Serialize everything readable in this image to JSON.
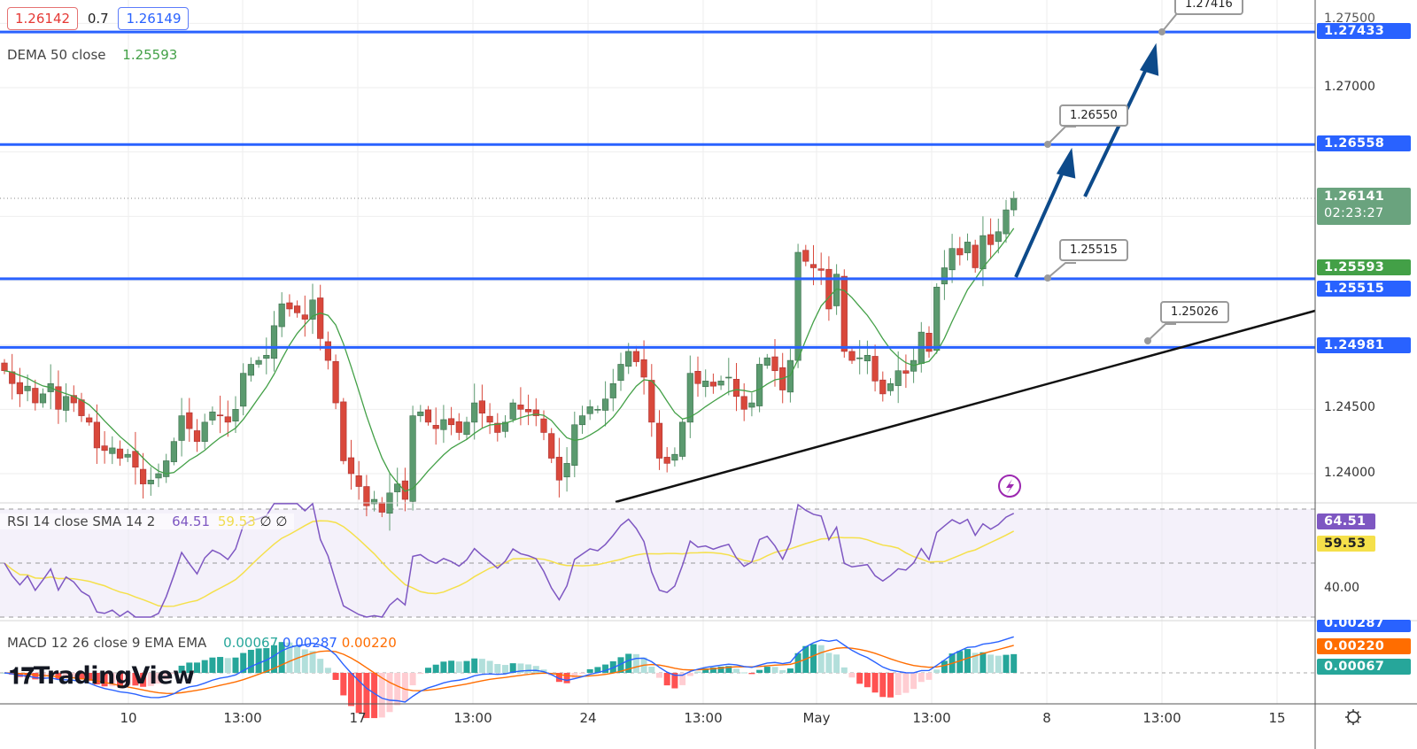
{
  "chart_data": {
    "type": "candlestick",
    "symbol_quote": {
      "bid": "1.26142",
      "spread": "0.7",
      "ask": "1.26149"
    },
    "indicators": {
      "dema": {
        "label": "DEMA 50 close",
        "value": "1.25593",
        "color": "#43a047"
      },
      "rsi": {
        "label": "RSI 14 close SMA 14 2",
        "value": "64.51",
        "sma_value": "59.53",
        "extra": [
          "∅",
          "∅"
        ],
        "color": "#7e57c2",
        "sma_color": "#f5e04a",
        "axis_label": "40.00"
      },
      "macd": {
        "label": "MACD 12 26 close 9 EMA EMA",
        "hist": "0.00067",
        "macd": "0.00287",
        "signal": "0.00220",
        "hist_color": "#26a69a",
        "macd_color": "#2962ff",
        "signal_color": "#ff6d00"
      }
    },
    "closes": [
      1.248,
      1.247,
      1.2462,
      1.2468,
      1.2455,
      1.2462,
      1.247,
      1.245,
      1.246,
      1.2455,
      1.2445,
      1.244,
      1.242,
      1.2418,
      1.242,
      1.2412,
      1.2415,
      1.2405,
      1.2392,
      1.2395,
      1.24,
      1.241,
      1.2425,
      1.2445,
      1.2435,
      1.2425,
      1.244,
      1.2448,
      1.2445,
      1.244,
      1.245,
      1.2478,
      1.2485,
      1.2488,
      1.2492,
      1.2515,
      1.2532,
      1.2528,
      1.2525,
      1.252,
      1.2535,
      1.2505,
      1.2488,
      1.2455,
      1.241,
      1.24,
      1.239,
      1.2375,
      1.238,
      1.237,
      1.2385,
      1.2392,
      1.238,
      1.2445,
      1.2448,
      1.244,
      1.2435,
      1.2442,
      1.2438,
      1.2432,
      1.244,
      1.2455,
      1.2447,
      1.244,
      1.2432,
      1.244,
      1.2455,
      1.245,
      1.2448,
      1.2445,
      1.2432,
      1.2412,
      1.2395,
      1.2408,
      1.2438,
      1.2445,
      1.2452,
      1.245,
      1.2458,
      1.247,
      1.2485,
      1.2495,
      1.2487,
      1.2475,
      1.244,
      1.2412,
      1.2408,
      1.2415,
      1.244,
      1.2478,
      1.247,
      1.2472,
      1.2468,
      1.2472,
      1.2475,
      1.246,
      1.245,
      1.2455,
      1.2485,
      1.249,
      1.248,
      1.2465,
      1.2488,
      1.2572,
      1.2565,
      1.256,
      1.2558,
      1.2528,
      1.2555,
      1.2495,
      1.2488,
      1.249,
      1.2492,
      1.2472,
      1.2462,
      1.247,
      1.248,
      1.2478,
      1.2488,
      1.251,
      1.2495,
      1.2545,
      1.256,
      1.2575,
      1.257,
      1.258,
      1.256,
      1.2585,
      1.2578,
      1.2588,
      1.2605,
      1.2614
    ],
    "price_axis": {
      "ticks": [
        "1.27500",
        "1.27000",
        "1.24500",
        "1.24000"
      ],
      "ylim": [
        1.2375,
        1.2775
      ]
    },
    "x_ticks": [
      "10",
      "13:00",
      "17",
      "13:00",
      "24",
      "13:00",
      "May",
      "13:00",
      "8",
      "13:00",
      "15"
    ],
    "horizontal_levels": [
      {
        "price": "1.27433",
        "value": 1.27433
      },
      {
        "price": "1.26558",
        "value": 1.26558
      },
      {
        "price": "1.25515",
        "value": 1.25515
      },
      {
        "price": "1.24981",
        "value": 1.24981
      }
    ],
    "callouts": [
      "1.27416",
      "1.26550",
      "1.25515",
      "1.25026"
    ],
    "last_price": {
      "value": "1.26141",
      "countdown": "02:23:27"
    },
    "dema_tag": "1.25593",
    "colors": {
      "up": "#5b9a6f",
      "down": "#d9483b",
      "level": "#2962ff",
      "arrow": "#0d4a8a",
      "trend": "#111111"
    }
  },
  "branding": "TradingView"
}
